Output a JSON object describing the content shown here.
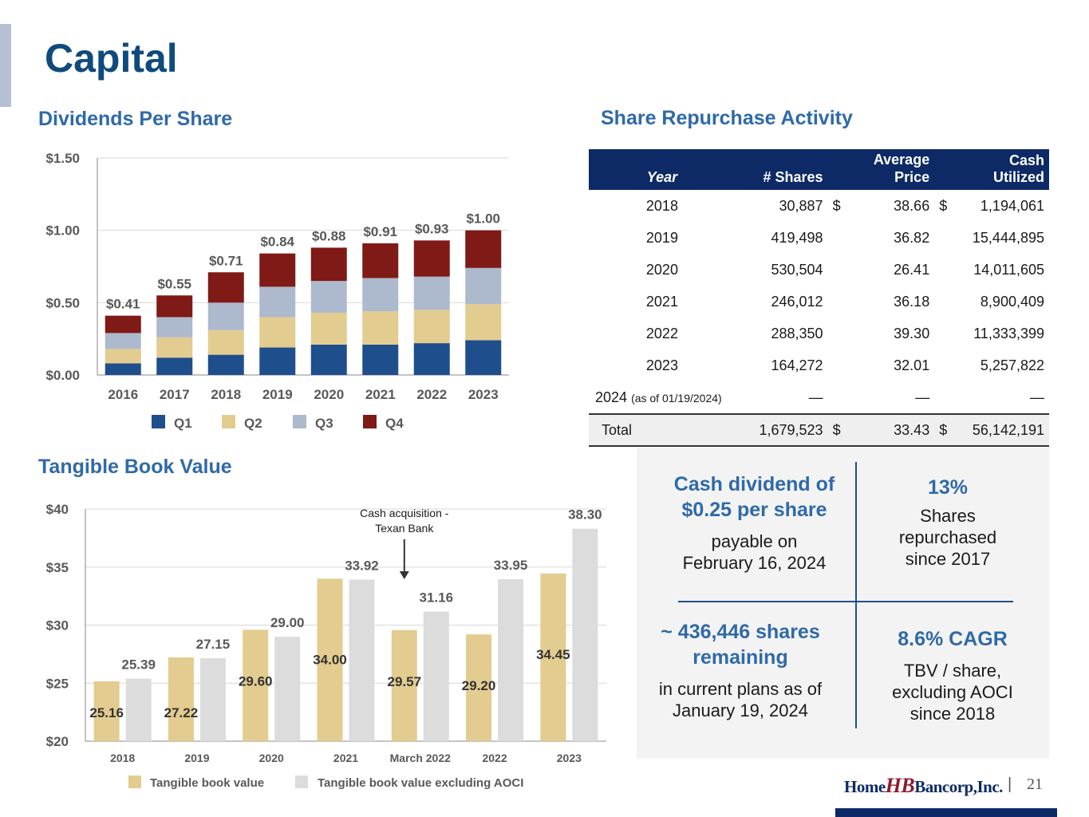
{
  "page": {
    "title": "Capital",
    "page_number": "21",
    "separator": "|"
  },
  "logo": {
    "part1": "Home",
    "mark": "HB",
    "part2": "Bancorp,Inc."
  },
  "sections": {
    "dividends": "Dividends Per Share",
    "repurchase": "Share Repurchase Activity",
    "tbv": "Tangible Book Value"
  },
  "chart_data": [
    {
      "type": "bar",
      "stacked": true,
      "title": "Dividends Per Share",
      "categories": [
        "2016",
        "2017",
        "2018",
        "2019",
        "2020",
        "2021",
        "2022",
        "2023"
      ],
      "series": [
        {
          "name": "Q1",
          "color": "#1f4e8c",
          "values": [
            0.08,
            0.12,
            0.14,
            0.19,
            0.21,
            0.21,
            0.22,
            0.24
          ]
        },
        {
          "name": "Q2",
          "color": "#e2cc8f",
          "values": [
            0.1,
            0.14,
            0.17,
            0.21,
            0.22,
            0.23,
            0.23,
            0.25
          ]
        },
        {
          "name": "Q3",
          "color": "#adb9cc",
          "values": [
            0.11,
            0.14,
            0.19,
            0.21,
            0.22,
            0.23,
            0.23,
            0.25
          ]
        },
        {
          "name": "Q4",
          "color": "#7f1a16",
          "values": [
            0.12,
            0.15,
            0.21,
            0.23,
            0.23,
            0.24,
            0.25,
            0.26
          ]
        }
      ],
      "totals_labels": [
        "$0.41",
        "$0.55",
        "$0.71",
        "$0.84",
        "$0.88",
        "$0.91",
        "$0.93",
        "$1.00"
      ],
      "y_ticks": [
        "$0.00",
        "$0.50",
        "$1.00",
        "$1.50"
      ],
      "y_tick_values": [
        0,
        0.5,
        1.0,
        1.5
      ],
      "ylim": [
        0,
        1.5
      ],
      "legend_position": "bottom",
      "grid": true
    },
    {
      "type": "bar",
      "title": "Tangible Book Value",
      "categories": [
        "2018",
        "2019",
        "2020",
        "2021",
        "March 2022",
        "2022",
        "2023"
      ],
      "series": [
        {
          "name": "Tangible book value",
          "color": "#e2cc8f",
          "values": [
            25.16,
            27.22,
            29.6,
            34.0,
            29.57,
            29.2,
            34.45
          ]
        },
        {
          "name": "Tangible book value excluding AOCI",
          "color": "#dcdcdc",
          "values": [
            25.39,
            27.15,
            29.0,
            33.92,
            31.16,
            33.95,
            38.3
          ]
        }
      ],
      "labels_tbv": [
        "25.16",
        "27.22",
        "29.60",
        "34.00",
        "29.57",
        "29.20",
        "34.45"
      ],
      "labels_ex": [
        "25.39",
        "27.15",
        "29.00",
        "33.92",
        "31.16",
        "33.95",
        "38.30"
      ],
      "y_ticks": [
        "$20",
        "$25",
        "$30",
        "$35",
        "$40"
      ],
      "y_tick_values": [
        20,
        25,
        30,
        35,
        40
      ],
      "ylim": [
        20,
        40
      ],
      "annotation": {
        "line1": "Cash acquisition -",
        "line2": "Texan Bank",
        "category": "March 2022"
      },
      "legend_position": "bottom",
      "grid": true
    }
  ],
  "repurchase_table": {
    "headers": {
      "year": "Year",
      "shares": "# Shares",
      "price_top": "Average",
      "price_bottom": "Price",
      "cash": "Cash Utilized"
    },
    "rows": [
      {
        "year": "2018",
        "shares": "30,887",
        "cur1": "$",
        "price": "38.66",
        "cur2": "$",
        "cash": "1,194,061"
      },
      {
        "year": "2019",
        "shares": "419,498",
        "cur1": "",
        "price": "36.82",
        "cur2": "",
        "cash": "15,444,895"
      },
      {
        "year": "2020",
        "shares": "530,504",
        "cur1": "",
        "price": "26.41",
        "cur2": "",
        "cash": "14,011,605"
      },
      {
        "year": "2021",
        "shares": "246,012",
        "cur1": "",
        "price": "36.18",
        "cur2": "",
        "cash": "8,900,409"
      },
      {
        "year": "2022",
        "shares": "288,350",
        "cur1": "",
        "price": "39.30",
        "cur2": "",
        "cash": "11,333,399"
      },
      {
        "year": "2023",
        "shares": "164,272",
        "cur1": "",
        "price": "32.01",
        "cur2": "",
        "cash": "5,257,822"
      }
    ],
    "row2024": {
      "year": "2024",
      "note": "(as of 01/19/2024)",
      "shares": "—",
      "price": "—",
      "cash": "—"
    },
    "total": {
      "label": "Total",
      "shares": "1,679,523",
      "cur1": "$",
      "price": "33.43",
      "cur2": "$",
      "cash": "56,142,191"
    }
  },
  "callouts": {
    "dividend": {
      "h1": "Cash dividend of",
      "h2": "$0.25 per share",
      "b1": "payable on",
      "b2": "February 16, 2024"
    },
    "repurchased": {
      "h1": "13%",
      "b1": "Shares",
      "b2": "repurchased",
      "b3": "since 2017"
    },
    "remaining": {
      "h1": "~ 436,446 shares",
      "h2": "remaining",
      "b1": "in current plans as of",
      "b2": "January 19, 2024"
    },
    "cagr": {
      "h1": "8.6% CAGR",
      "b1": "TBV / share,",
      "b2": "excluding AOCI",
      "b3": "since 2018"
    }
  }
}
